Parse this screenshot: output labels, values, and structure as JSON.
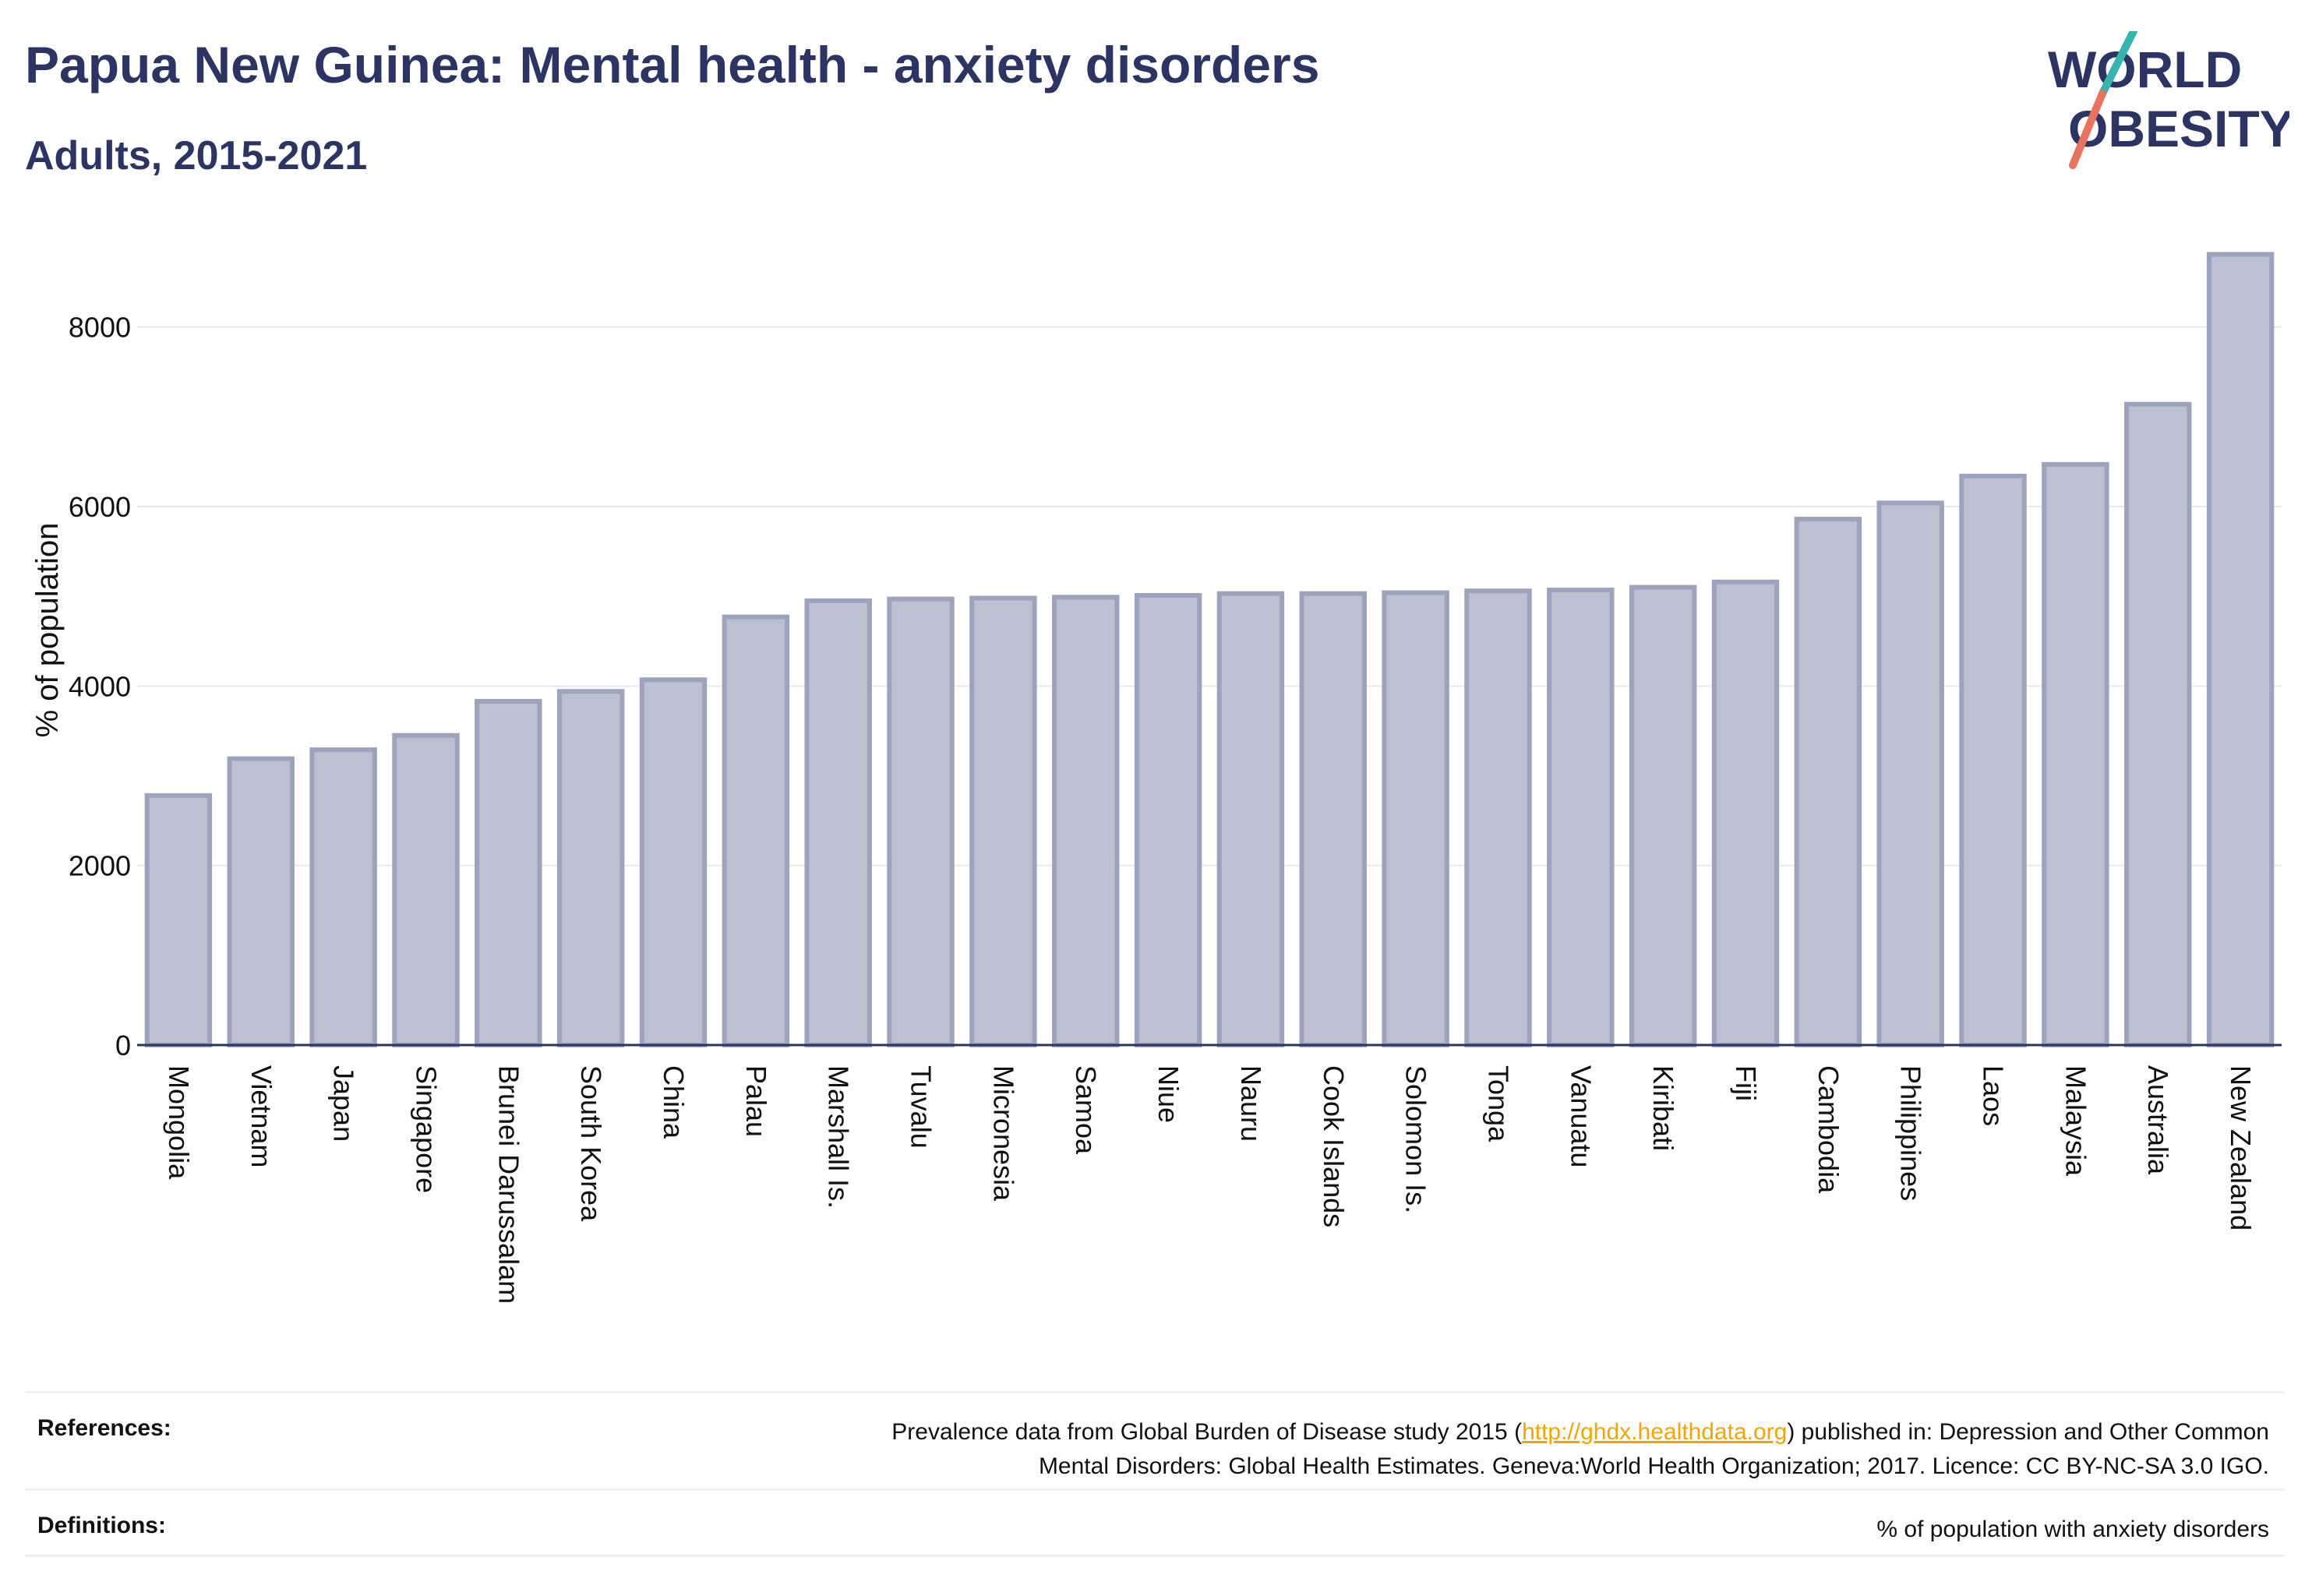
{
  "header": {
    "title": "Papua New Guinea: Mental health - anxiety disorders",
    "subtitle": "Adults, 2015-2021"
  },
  "logo": {
    "line1": "WORLD",
    "line2": "OBESITY",
    "text_color": "#2b3463",
    "slash_colors": [
      "#36b5b0",
      "#e8735e"
    ]
  },
  "chart_data": {
    "type": "bar",
    "title": "",
    "xlabel": "",
    "ylabel": "% of population",
    "ylim": [
      0,
      8900
    ],
    "yticks": [
      0,
      2000,
      4000,
      6000,
      8000
    ],
    "grid": true,
    "bar_fill": "#bcc0d0",
    "bar_stroke": "#9da3bd",
    "categories": [
      "Mongolia",
      "Vietnam",
      "Japan",
      "Singapore",
      "Brunei Darussalam",
      "South Korea",
      "China",
      "Palau",
      "Marshall Is.",
      "Tuvalu",
      "Micronesia",
      "Samoa",
      "Niue",
      "Nauru",
      "Cook Islands",
      "Solomon Is.",
      "Tonga",
      "Vanuatu",
      "Kiribati",
      "Fiji",
      "Cambodia",
      "Philippines",
      "Laos",
      "Malaysia",
      "Australia",
      "New Zealand"
    ],
    "values": [
      2780,
      3190,
      3290,
      3450,
      3830,
      3940,
      4070,
      4770,
      4950,
      4970,
      4980,
      4990,
      5010,
      5030,
      5030,
      5040,
      5060,
      5070,
      5100,
      5160,
      5860,
      6040,
      6340,
      6470,
      7140,
      8810
    ]
  },
  "footer": {
    "references_label": "References:",
    "references_pre": "Prevalence data from Global Burden of Disease study 2015 (",
    "references_link": "http://ghdx.healthdata.org",
    "references_post": ") published in: Depression and Other Common",
    "references_line2": "Mental Disorders: Global Health Estimates. Geneva:World Health Organization; 2017. Licence: CC BY-NC-SA 3.0 IGO.",
    "definitions_label": "Definitions:",
    "definitions_text": "% of population with anxiety disorders"
  }
}
